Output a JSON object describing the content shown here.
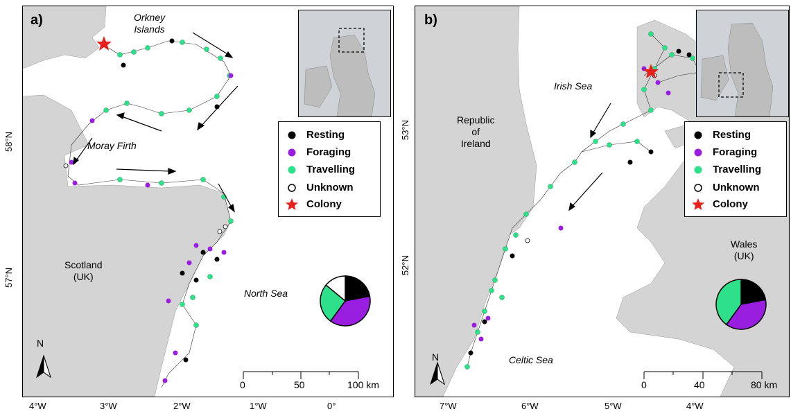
{
  "panels": [
    {
      "label": "a)",
      "places": {
        "orkney": "Orkney\nIslands",
        "moray": "Moray Firth",
        "scotland": "Scotland\n(UK)",
        "northsea": "North Sea"
      },
      "y_ticks": [
        "58°N",
        "57°N"
      ],
      "x_ticks": [
        "4°W",
        "3°W",
        "2°W",
        "1°W",
        "0°"
      ],
      "scale_labels": [
        "0",
        "50",
        "100 km"
      ],
      "pie": {
        "resting": 0.22,
        "foraging": 0.38,
        "travelling": 0.26,
        "unknown": 0.14
      }
    },
    {
      "label": "b)",
      "places": {
        "irishsea": "Irish Sea",
        "ireland": "Republic\nof\nIreland",
        "wales": "Wales\n(UK)",
        "celtic": "Celtic Sea"
      },
      "y_ticks": [
        "53°N",
        "52°N"
      ],
      "x_ticks": [
        "7°W",
        "6°W",
        "5°W",
        "4°W"
      ],
      "scale_labels": [
        "0",
        "40",
        "80 km"
      ],
      "pie": {
        "resting": 0.22,
        "foraging": 0.38,
        "travelling": 0.4,
        "unknown": 0.0
      }
    }
  ],
  "legend": {
    "items": [
      {
        "label": "Resting",
        "symbol": "filled-circle",
        "color": "#000000"
      },
      {
        "label": "Foraging",
        "symbol": "filled-circle",
        "color": "#9a1ee0"
      },
      {
        "label": "Travelling",
        "symbol": "filled-circle",
        "color": "#2ee08a"
      },
      {
        "label": "Unknown",
        "symbol": "open-circle",
        "color": "#000000"
      },
      {
        "label": "Colony",
        "symbol": "star",
        "color": "#e8201c"
      }
    ]
  },
  "north_label": "N",
  "colors": {
    "land": "#d4d4d4",
    "sea": "#ffffff",
    "resting": "#000000",
    "foraging": "#9a1ee0",
    "travelling": "#2ee08a",
    "colony": "#e8201c"
  }
}
